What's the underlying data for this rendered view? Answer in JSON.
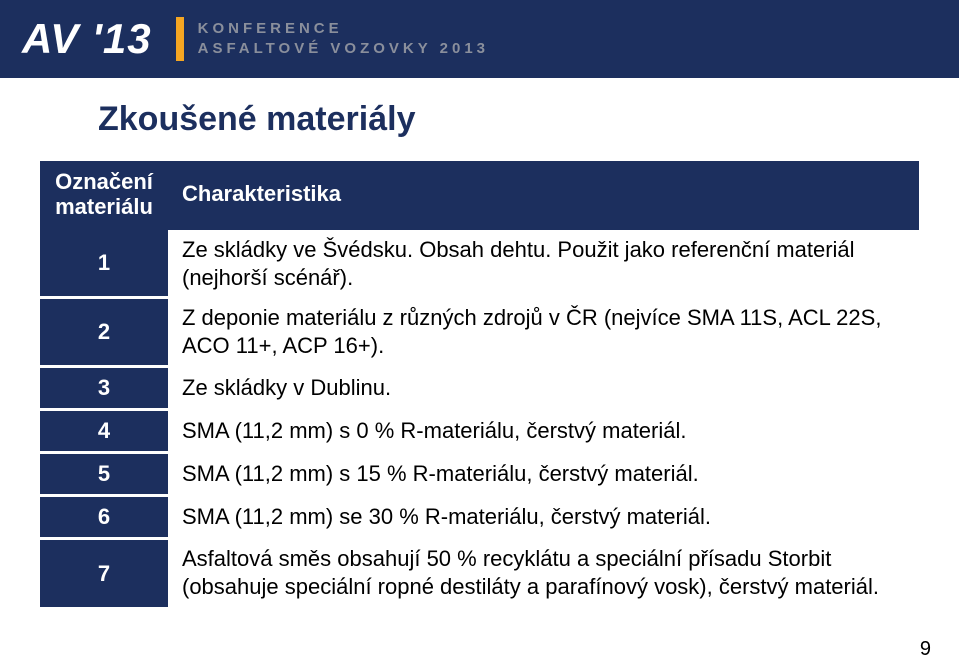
{
  "header": {
    "logo_text": "AV '13",
    "line1": "KONFERENCE",
    "line2": "ASFALTOVÉ VOZOVKY 2013",
    "bg_color": "#1c2f5e",
    "accent_color": "#f5a623",
    "muted_text_color": "#8a8f9c"
  },
  "page": {
    "title": "Zkoušené materiály",
    "number": "9"
  },
  "table": {
    "header_left": "Označení materiálu",
    "header_right": "Charakteristika",
    "header_bg": "#1c2f5e",
    "header_fg": "#ffffff",
    "num_bg": "#1c2f5e",
    "num_fg": "#ffffff",
    "body_fontsize": 22,
    "rows": [
      {
        "n": "1",
        "text": "Ze skládky ve Švédsku. Obsah dehtu. Použit jako referenční materiál (nejhorší scénář)."
      },
      {
        "n": "2",
        "text": "Z deponie materiálu z různých zdrojů v ČR (nejvíce SMA 11S, ACL 22S, ACO 11+, ACP 16+)."
      },
      {
        "n": "3",
        "text": "Ze skládky v Dublinu."
      },
      {
        "n": "4",
        "text": "SMA (11,2 mm) s 0 % R-materiálu, čerstvý materiál."
      },
      {
        "n": "5",
        "text": "SMA (11,2 mm) s 15 % R-materiálu, čerstvý materiál."
      },
      {
        "n": "6",
        "text": "SMA (11,2 mm) se 30 % R-materiálu, čerstvý materiál."
      },
      {
        "n": "7",
        "text": "Asfaltová směs obsahují 50 % recyklátu a speciální přísadu Storbit (obsahuje speciální ropné destiláty a parafínový vosk), čerstvý materiál."
      }
    ]
  }
}
